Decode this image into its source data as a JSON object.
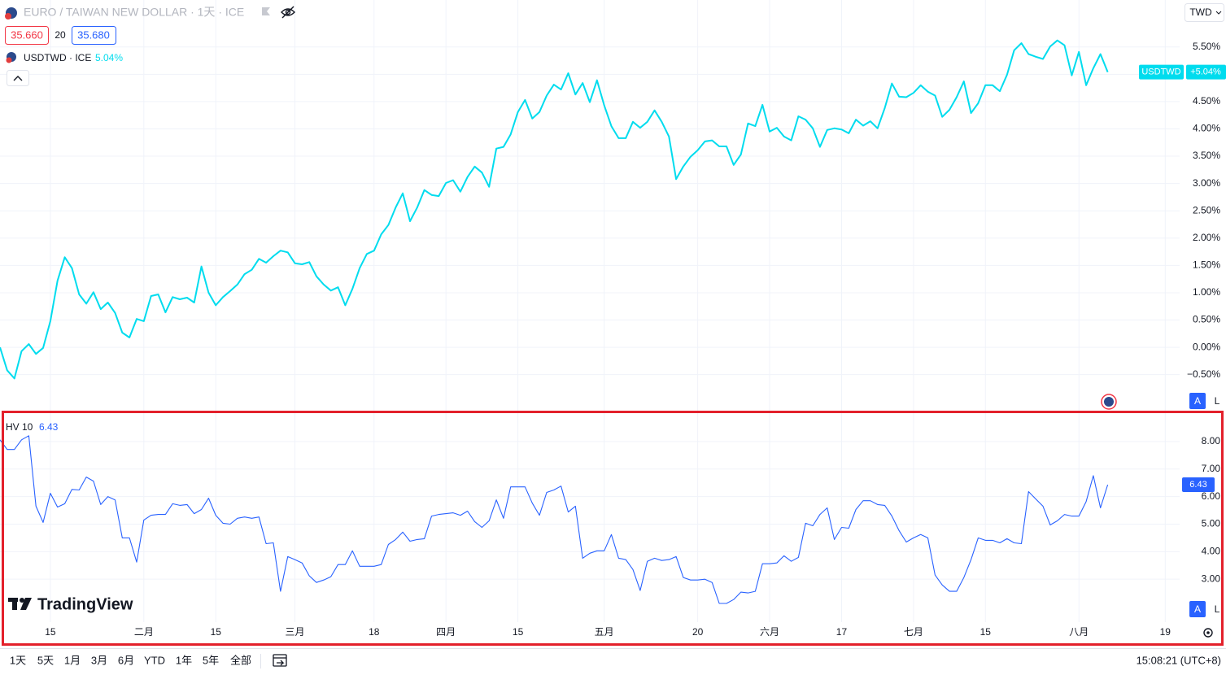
{
  "header": {
    "symbol_title": "EURO / TAIWAN NEW DOLLAR · 1天 · ICE",
    "bid": "35.660",
    "spread": "20",
    "ask": "35.680",
    "currency": "TWD"
  },
  "watermark": "TradingView",
  "scale_buttons": [
    "A",
    "L"
  ],
  "toolbar": {
    "ranges": [
      "1天",
      "5天",
      "1月",
      "3月",
      "6月",
      "YTD",
      "1年",
      "5年",
      "全部"
    ],
    "clock": "15:08:21 (UTC+8)"
  },
  "chart_data": [
    {
      "type": "line",
      "grid": true,
      "xlim": [
        0,
        164
      ],
      "ylim": [
        -1.16,
        6.36
      ],
      "yticks": [
        {
          "value": -0.5,
          "label": "−0.50%"
        },
        {
          "value": 0,
          "label": "0.00%"
        },
        {
          "value": 0.5,
          "label": "0.50%"
        },
        {
          "value": 1,
          "label": "1.00%"
        },
        {
          "value": 1.5,
          "label": "1.50%"
        },
        {
          "value": 2,
          "label": "2.00%"
        },
        {
          "value": 2.5,
          "label": "2.50%"
        },
        {
          "value": 3,
          "label": "3.00%"
        },
        {
          "value": 3.5,
          "label": "3.50%"
        },
        {
          "value": 4,
          "label": "4.00%"
        },
        {
          "value": 4.5,
          "label": "4.50%"
        },
        {
          "value": 5,
          "label": "5.00%"
        },
        {
          "value": 5.5,
          "label": "5.50%"
        }
      ],
      "series": [
        {
          "name": "USDTWD · ICE",
          "badge_name": "USDTWD",
          "last_label": "5.04%",
          "badge_label": "+5.04%",
          "color": "#00dcee",
          "values": [
            0.0,
            -0.42,
            -0.57,
            -0.07,
            0.06,
            -0.12,
            -0.01,
            0.48,
            1.22,
            1.65,
            1.45,
            0.97,
            0.8,
            1.01,
            0.7,
            0.82,
            0.63,
            0.27,
            0.18,
            0.52,
            0.48,
            0.94,
            0.97,
            0.64,
            0.92,
            0.88,
            0.91,
            0.82,
            1.48,
            1.0,
            0.77,
            0.92,
            1.03,
            1.15,
            1.34,
            1.42,
            1.62,
            1.55,
            1.67,
            1.77,
            1.74,
            1.54,
            1.52,
            1.56,
            1.3,
            1.15,
            1.04,
            1.1,
            0.77,
            1.07,
            1.45,
            1.71,
            1.77,
            2.07,
            2.24,
            2.56,
            2.82,
            2.31,
            2.56,
            2.88,
            2.79,
            2.77,
            3.01,
            3.06,
            2.85,
            3.12,
            3.31,
            3.2,
            2.94,
            3.64,
            3.67,
            3.9,
            4.31,
            4.53,
            4.19,
            4.31,
            4.61,
            4.81,
            4.72,
            5.02,
            4.63,
            4.84,
            4.49,
            4.89,
            4.43,
            4.05,
            3.83,
            3.83,
            4.13,
            4.02,
            4.13,
            4.34,
            4.13,
            3.86,
            3.08,
            3.31,
            3.49,
            3.61,
            3.77,
            3.79,
            3.68,
            3.68,
            3.34,
            3.53,
            4.1,
            4.05,
            4.44,
            3.95,
            4.02,
            3.86,
            3.79,
            4.23,
            4.17,
            4.01,
            3.67,
            3.98,
            4.01,
            3.99,
            3.92,
            4.17,
            4.06,
            4.14,
            4.01,
            4.38,
            4.83,
            4.59,
            4.58,
            4.66,
            4.8,
            4.68,
            4.61,
            4.22,
            4.35,
            4.58,
            4.87,
            4.29,
            4.47,
            4.8,
            4.8,
            4.69,
            4.99,
            5.44,
            5.57,
            5.37,
            5.32,
            5.28,
            5.51,
            5.62,
            5.53,
            4.98,
            5.41,
            4.8,
            5.11,
            5.37,
            5.04
          ]
        }
      ]
    },
    {
      "type": "line",
      "grid": true,
      "xlim": [
        0,
        164
      ],
      "xticks": [
        {
          "value": 7,
          "label": "15"
        },
        {
          "value": 20,
          "label": "二月"
        },
        {
          "value": 30,
          "label": "15"
        },
        {
          "value": 41,
          "label": "三月"
        },
        {
          "value": 52,
          "label": "18"
        },
        {
          "value": 62,
          "label": "四月"
        },
        {
          "value": 72,
          "label": "15"
        },
        {
          "value": 84,
          "label": "五月"
        },
        {
          "value": 97,
          "label": "20"
        },
        {
          "value": 107,
          "label": "六月"
        },
        {
          "value": 117,
          "label": "17"
        },
        {
          "value": 127,
          "label": "七月"
        },
        {
          "value": 137,
          "label": "15"
        },
        {
          "value": 150,
          "label": "八月"
        },
        {
          "value": 162,
          "label": "19"
        }
      ],
      "ylim": [
        1.44,
        9.03
      ],
      "yticks": [
        {
          "value": 3,
          "label": "3.00"
        },
        {
          "value": 4,
          "label": "4.00"
        },
        {
          "value": 5,
          "label": "5.00"
        },
        {
          "value": 6,
          "label": "6.00"
        },
        {
          "value": 7,
          "label": "7.00"
        },
        {
          "value": 8,
          "label": "8.00"
        }
      ],
      "series": [
        {
          "name": "HV 10",
          "color": "#2962ff",
          "values": [
            8.06,
            7.71,
            7.71,
            8.06,
            8.21,
            5.65,
            5.06,
            6.12,
            5.62,
            5.74,
            6.26,
            6.24,
            6.71,
            6.56,
            5.71,
            6.0,
            5.88,
            4.5,
            4.5,
            3.62,
            5.15,
            5.32,
            5.35,
            5.35,
            5.74,
            5.68,
            5.71,
            5.38,
            5.53,
            5.94,
            5.32,
            5.03,
            5.0,
            5.21,
            5.26,
            5.21,
            5.26,
            4.29,
            4.32,
            2.56,
            3.82,
            3.71,
            3.59,
            3.12,
            2.88,
            2.97,
            3.09,
            3.53,
            3.53,
            4.03,
            3.47,
            3.47,
            3.47,
            3.53,
            4.26,
            4.44,
            4.71,
            4.38,
            4.44,
            4.47,
            5.29,
            5.35,
            5.38,
            5.41,
            5.32,
            5.47,
            5.09,
            4.88,
            5.12,
            5.88,
            5.21,
            6.35,
            6.35,
            6.35,
            5.76,
            5.32,
            6.15,
            6.24,
            6.38,
            5.44,
            5.65,
            3.76,
            3.94,
            4.03,
            4.03,
            4.62,
            3.76,
            3.71,
            3.35,
            2.59,
            3.65,
            3.76,
            3.68,
            3.71,
            3.82,
            3.06,
            2.97,
            2.97,
            3.0,
            2.88,
            2.12,
            2.12,
            2.26,
            2.53,
            2.5,
            2.56,
            3.56,
            3.56,
            3.59,
            3.85,
            3.65,
            3.79,
            5.03,
            4.94,
            5.35,
            5.59,
            4.44,
            4.88,
            4.85,
            5.53,
            5.85,
            5.85,
            5.71,
            5.68,
            5.29,
            4.76,
            4.35,
            4.5,
            4.62,
            4.5,
            3.15,
            2.79,
            2.56,
            2.56,
            3.06,
            3.71,
            4.5,
            4.41,
            4.41,
            4.32,
            4.47,
            4.32,
            4.29,
            6.18,
            5.91,
            5.65,
            4.97,
            5.12,
            5.35,
            5.29,
            5.29,
            5.82,
            6.76,
            5.59,
            6.43
          ]
        }
      ]
    }
  ]
}
